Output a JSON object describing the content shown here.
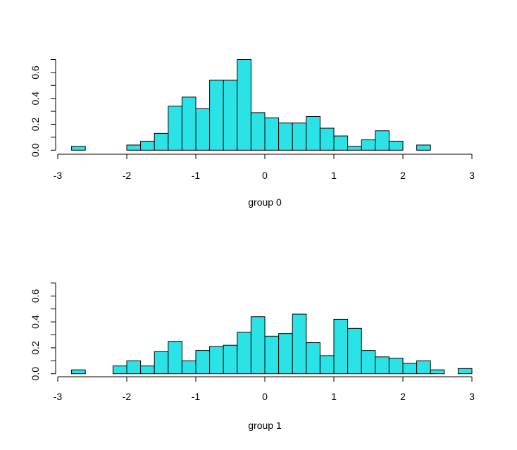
{
  "chart_data": [
    {
      "type": "bar",
      "subtype": "histogram",
      "xlabel": "group 0",
      "ylabel": "",
      "xlim": [
        -3,
        3
      ],
      "ylim": [
        0,
        0.7
      ],
      "xticks": [
        "-3",
        "-2",
        "-1",
        "0",
        "1",
        "2",
        "3"
      ],
      "yticks": [
        "0.0",
        "0.2",
        "0.4",
        "0.6"
      ],
      "bin_start": -2.8,
      "bin_width": 0.2,
      "values": [
        0.03,
        0,
        0,
        0,
        0.04,
        0.07,
        0.13,
        0.34,
        0.41,
        0.32,
        0.54,
        0.54,
        0.7,
        0.29,
        0.25,
        0.21,
        0.21,
        0.26,
        0.17,
        0.11,
        0.03,
        0.08,
        0.15,
        0.07,
        0,
        0.04,
        0,
        0,
        0
      ],
      "fill_color": "#2be3e6",
      "border_color": "#000000",
      "grid": false
    },
    {
      "type": "bar",
      "subtype": "histogram",
      "xlabel": "group 1",
      "ylabel": "",
      "xlim": [
        -3,
        3
      ],
      "ylim": [
        0,
        0.7
      ],
      "xticks": [
        "-3",
        "-2",
        "-1",
        "0",
        "1",
        "2",
        "3"
      ],
      "yticks": [
        "0.0",
        "0.2",
        "0.4",
        "0.6"
      ],
      "bin_start": -2.8,
      "bin_width": 0.2,
      "values": [
        0.03,
        0,
        0,
        0.06,
        0.1,
        0.06,
        0.17,
        0.25,
        0.1,
        0.18,
        0.21,
        0.22,
        0.32,
        0.44,
        0.29,
        0.31,
        0.46,
        0.24,
        0.14,
        0.42,
        0.35,
        0.18,
        0.13,
        0.12,
        0.08,
        0.1,
        0.03,
        0,
        0.04
      ],
      "fill_color": "#2be3e6",
      "border_color": "#000000",
      "grid": false
    }
  ]
}
